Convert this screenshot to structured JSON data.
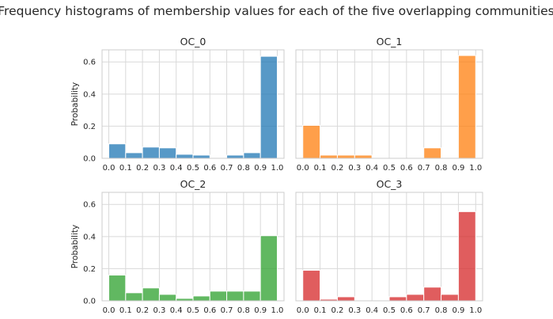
{
  "figure": {
    "title": "Frequency histograms of membership values for each of the five overlapping communities"
  },
  "chart_data": [
    {
      "type": "bar",
      "title": "OC_0",
      "ylabel": "Probability",
      "color": "#1f77b4",
      "bin_edges": [
        0.0,
        0.1,
        0.2,
        0.3,
        0.4,
        0.5,
        0.6,
        0.7,
        0.8,
        0.9,
        1.0
      ],
      "values": [
        0.09,
        0.035,
        0.07,
        0.065,
        0.025,
        0.02,
        0.0,
        0.02,
        0.035,
        0.635
      ],
      "xticks": [
        "0.0",
        "0.1",
        "0.2",
        "0.3",
        "0.4",
        "0.5",
        "0.6",
        "0.7",
        "0.8",
        "0.9",
        "1.0"
      ],
      "yticks": [
        "0.0",
        "0.2",
        "0.4",
        "0.6"
      ],
      "xlim": [
        -0.04,
        1.04
      ],
      "ylim": [
        0,
        0.675
      ],
      "grid": true
    },
    {
      "type": "bar",
      "title": "OC_1",
      "ylabel": "",
      "color": "#ff7f0e",
      "bin_edges": [
        0.0,
        0.1,
        0.2,
        0.3,
        0.4,
        0.5,
        0.6,
        0.7,
        0.8,
        0.9,
        1.0
      ],
      "values": [
        0.205,
        0.02,
        0.02,
        0.02,
        0.0,
        0.0,
        0.0,
        0.065,
        0.0,
        0.64
      ],
      "xticks": [
        "0.0",
        "0.1",
        "0.2",
        "0.3",
        "0.4",
        "0.5",
        "0.6",
        "0.7",
        "0.8",
        "0.9",
        "1.0"
      ],
      "yticks": [],
      "xlim": [
        -0.04,
        1.04
      ],
      "ylim": [
        0,
        0.675
      ],
      "grid": true
    },
    {
      "type": "bar",
      "title": "OC_2",
      "ylabel": "Probability",
      "color": "#2ca02c",
      "bin_edges": [
        0.0,
        0.1,
        0.2,
        0.3,
        0.4,
        0.5,
        0.6,
        0.7,
        0.8,
        0.9,
        1.0
      ],
      "values": [
        0.16,
        0.05,
        0.08,
        0.04,
        0.015,
        0.03,
        0.06,
        0.06,
        0.06,
        0.405
      ],
      "xticks": [
        "0.0",
        "0.1",
        "0.2",
        "0.3",
        "0.4",
        "0.5",
        "0.6",
        "0.7",
        "0.8",
        "0.9",
        "1.0"
      ],
      "yticks": [
        "0.0",
        "0.2",
        "0.4",
        "0.6"
      ],
      "xlim": [
        -0.04,
        1.04
      ],
      "ylim": [
        0,
        0.675
      ],
      "grid": true
    },
    {
      "type": "bar",
      "title": "OC_3",
      "ylabel": "",
      "color": "#d62728",
      "bin_edges": [
        0.0,
        0.1,
        0.2,
        0.3,
        0.4,
        0.5,
        0.6,
        0.7,
        0.8,
        0.9,
        1.0
      ],
      "values": [
        0.19,
        0.01,
        0.025,
        0.0,
        0.0,
        0.025,
        0.04,
        0.085,
        0.04,
        0.555
      ],
      "xticks": [
        "0.0",
        "0.1",
        "0.2",
        "0.3",
        "0.4",
        "0.5",
        "0.6",
        "0.7",
        "0.8",
        "0.9",
        "1.0"
      ],
      "yticks": [],
      "xlim": [
        -0.04,
        1.04
      ],
      "ylim": [
        0,
        0.675
      ],
      "grid": true
    }
  ]
}
